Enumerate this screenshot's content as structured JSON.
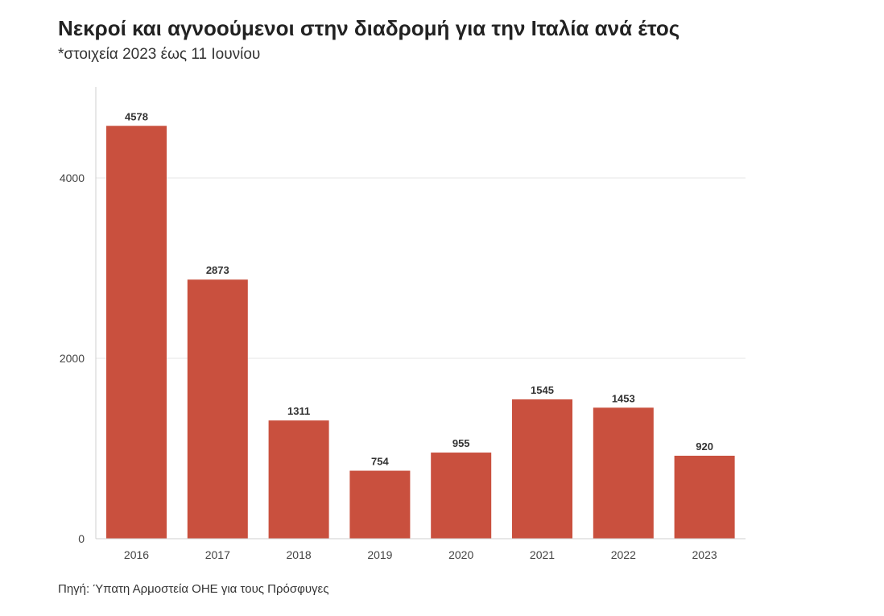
{
  "title": "Νεκροί και αγνοούμενοι στην διαδρομή για την Ιταλία ανά έτος",
  "subtitle": "*στοιχεία 2023 έως 11 Ιουνίου",
  "source": "Πηγή: Ύπατη Αρμοστεία ΟΗΕ για τους Πρόσφυγες",
  "colors": {
    "bar": "#c9503e",
    "grid": "#e6e6e6",
    "axis": "#cfcfcf"
  },
  "chart_data": {
    "type": "bar",
    "categories": [
      "2016",
      "2017",
      "2018",
      "2019",
      "2020",
      "2021",
      "2022",
      "2023"
    ],
    "values": [
      4578,
      2873,
      1311,
      754,
      955,
      1545,
      1453,
      920
    ],
    "title": "Νεκροί και αγνοούμενοι στην διαδρομή για την Ιταλία ανά έτος",
    "subtitle": "*στοιχεία 2023 έως 11 Ιουνίου",
    "xlabel": "",
    "ylabel": "",
    "ylim": [
      0,
      5000
    ],
    "yticks": [
      0,
      2000,
      4000
    ],
    "grid": true,
    "legend": "none",
    "data_labels": true
  }
}
